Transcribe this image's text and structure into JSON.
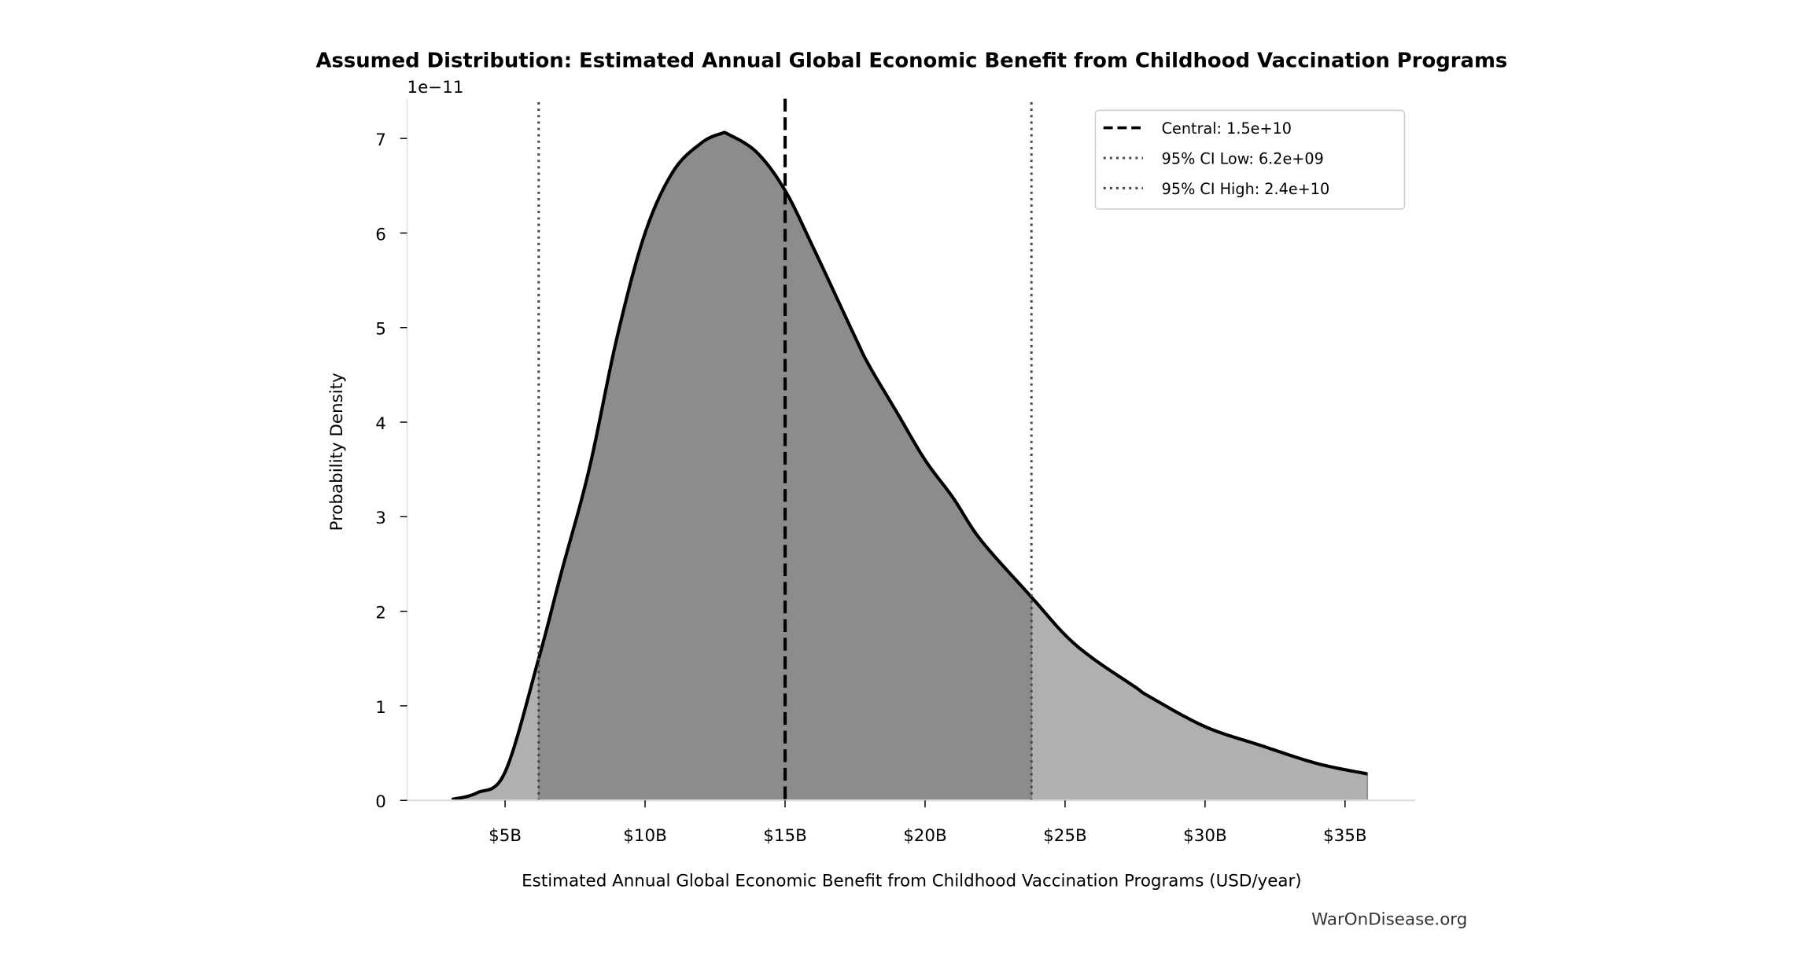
{
  "chart_data": {
    "type": "area",
    "title": "Assumed Distribution: Estimated Annual Global Economic Benefit from Childhood Vaccination Programs",
    "xlabel": "Estimated Annual Global Economic Benefit from Childhood Vaccination Programs (USD/year)",
    "ylabel": "Probability Density",
    "y_scale_label": "1e−11",
    "xlim": [
      1.5,
      37.5
    ],
    "ylim": [
      0,
      7.42
    ],
    "x_unit": "billion USD",
    "y_unit": "1e-11",
    "x_ticks": [
      5,
      10,
      15,
      20,
      25,
      30,
      35
    ],
    "x_tick_labels": [
      "$5B",
      "$10B",
      "$15B",
      "$20B",
      "$25B",
      "$30B",
      "$35B"
    ],
    "y_ticks": [
      0,
      1,
      2,
      3,
      4,
      5,
      6,
      7
    ],
    "y_tick_labels": [
      "0",
      "1",
      "2",
      "3",
      "4",
      "5",
      "6",
      "7"
    ],
    "grid": false,
    "legend_position": "top-right",
    "density": {
      "x": [
        3.1,
        4,
        5,
        6.2,
        7,
        8,
        9,
        10,
        11,
        12,
        12.7,
        13,
        14,
        15,
        16,
        17.5,
        18,
        19,
        20,
        21,
        22,
        23.8,
        25,
        26,
        27.5,
        28,
        30,
        32,
        34,
        35.8
      ],
      "y": [
        0.01,
        0.08,
        0.3,
        1.5,
        2.4,
        3.5,
        4.9,
        6.0,
        6.65,
        6.95,
        7.05,
        7.04,
        6.85,
        6.45,
        5.85,
        4.9,
        4.6,
        4.1,
        3.6,
        3.2,
        2.75,
        2.15,
        1.75,
        1.5,
        1.2,
        1.1,
        0.78,
        0.58,
        0.39,
        0.28
      ]
    },
    "central": 15,
    "ci_low": 6.2,
    "ci_high": 23.8,
    "legend": [
      {
        "label": "Central: 1.5e+10",
        "style": "dashed",
        "color": "#000000"
      },
      {
        "label": "95% CI Low: 6.2e+09",
        "style": "dotted",
        "color": "#444444"
      },
      {
        "label": "95% CI High: 2.4e+10",
        "style": "dotted",
        "color": "#444444"
      }
    ],
    "colors": {
      "tail_fill": "#b0b0b0",
      "ci_fill": "#8c8c8c",
      "curve": "#000000"
    }
  },
  "watermark": "WarOnDisease.org"
}
